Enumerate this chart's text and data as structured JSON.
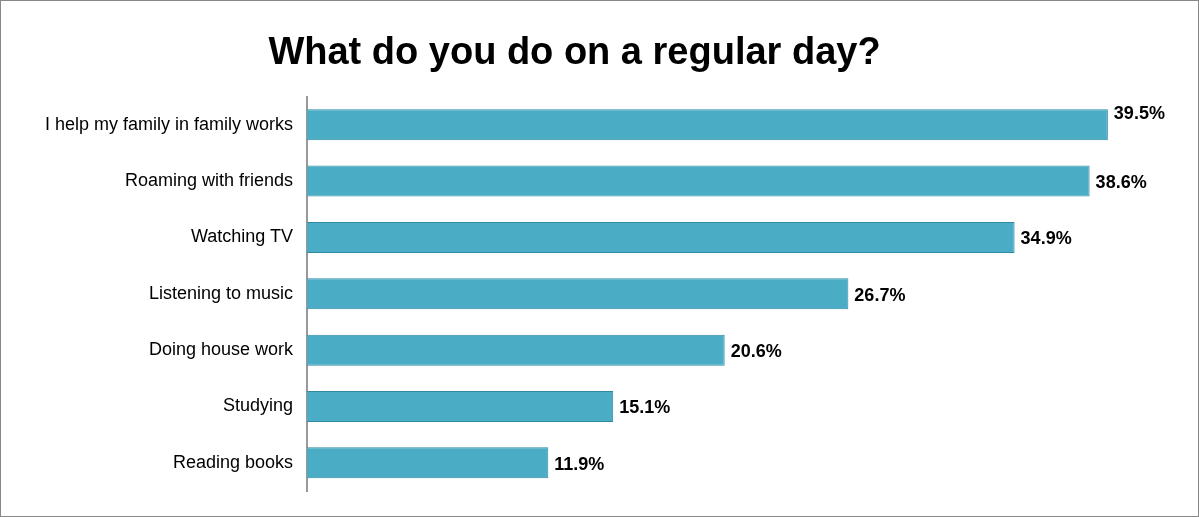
{
  "chart_data": {
    "type": "bar",
    "orientation": "horizontal",
    "title": "What do you do on a regular day?",
    "categories": [
      "I help my family in family works",
      "Roaming with friends",
      "Watching TV",
      "Listening to music",
      "Doing house work",
      "Studying",
      "Reading books"
    ],
    "values": [
      39.5,
      38.6,
      34.9,
      26.7,
      20.6,
      15.1,
      11.9
    ],
    "color": "#4bacc6",
    "data_labels": true,
    "value_labels": [
      "39.5%",
      "38.6%",
      "34.9%",
      "26.7%",
      "20.6%",
      "15.1%",
      "11.9%"
    ],
    "legend": false
  }
}
